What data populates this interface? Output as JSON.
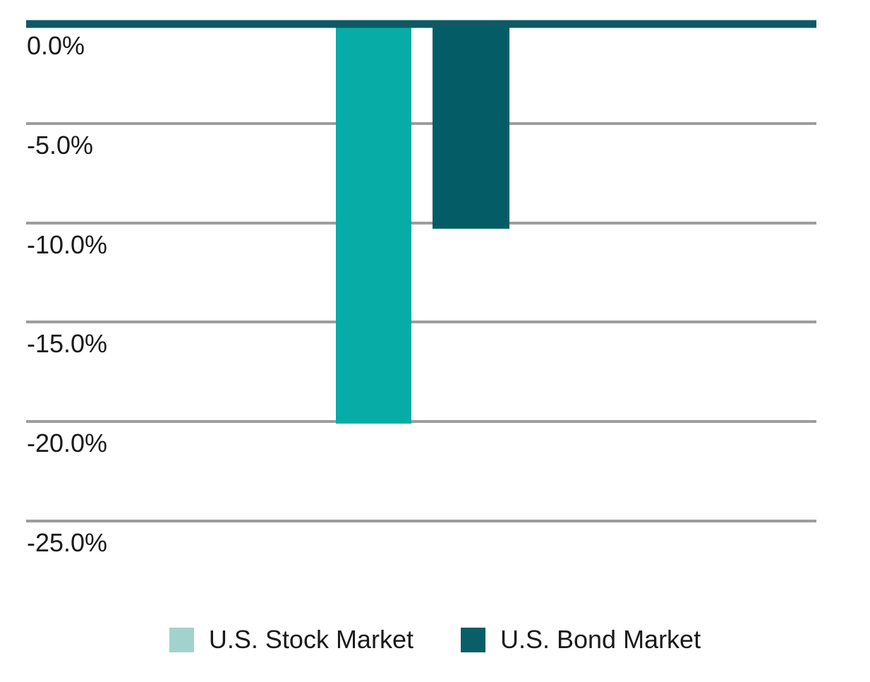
{
  "chart_data": {
    "type": "bar",
    "orientation": "vertical",
    "title": "",
    "xlabel": "",
    "ylabel": "",
    "categories": [
      ""
    ],
    "series": [
      {
        "name": "U.S. Stock Market",
        "values": [
          -20.1
        ],
        "bar_color": "#07ACA6",
        "legend_color": "#A3D2CC"
      },
      {
        "name": "U.S. Bond Market",
        "values": [
          -10.3
        ],
        "bar_color": "#045D66",
        "legend_color": "#0A5E67"
      }
    ],
    "ylim": [
      0,
      -25
    ],
    "ytick_step": 5,
    "ytick_labels": [
      "0.0%",
      "-5.0%",
      "-10.0%",
      "-15.0%",
      "-20.0%",
      "-25.0%"
    ],
    "grid": true,
    "legend_position": "bottom",
    "colors": {
      "zero_axis_line": "#0D5A63",
      "gridline": "#9D9D9D",
      "tick_label_text": "#1A1A1A",
      "legend_text": "#1A1A1A",
      "background": "#FFFFFF"
    }
  }
}
